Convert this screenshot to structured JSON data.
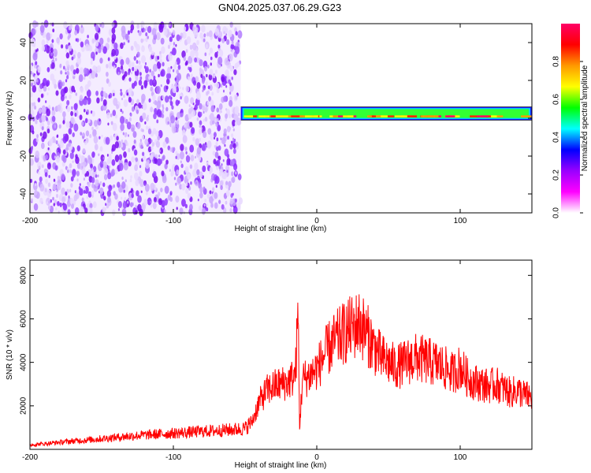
{
  "title": "GN04.2025.037.06.29.G23",
  "chart_data": [
    {
      "type": "heatmap",
      "xlabel": "Height of straight line (km)",
      "ylabel": "Frequency (Hz)",
      "xlim": [
        -200,
        150
      ],
      "ylim": [
        -50,
        50
      ],
      "x_ticks": [
        -200,
        -100,
        0,
        100
      ],
      "x_tick_labels": [
        "-200",
        "-100",
        "0",
        "100"
      ],
      "y_ticks": [
        -40,
        -20,
        0,
        20,
        40
      ],
      "y_tick_labels": [
        "-40",
        "-20",
        "0",
        "20",
        "40"
      ],
      "noise_region_x": [
        -200,
        -53
      ],
      "band_x": [
        -53,
        150
      ],
      "band_freq_range": [
        -1,
        6
      ],
      "colorbar": {
        "label": "Normalized spectral amplitude",
        "range": [
          0,
          1
        ],
        "ticks": [
          0.0,
          0.2,
          0.4,
          0.6,
          0.8
        ],
        "tick_labels": [
          "0.0",
          "0.2",
          "0.4",
          "0.6",
          "0.8"
        ],
        "colors": [
          "#ffffff",
          "#ff00ff",
          "#9900ff",
          "#0000ff",
          "#00ffff",
          "#00ff00",
          "#ffff00",
          "#ff9900",
          "#ff0000",
          "#ff0066"
        ]
      },
      "grid": false
    },
    {
      "type": "line",
      "xlabel": "Height of straight line (km)",
      "ylabel": "SNR (10 * v/v)",
      "xlim": [
        -200,
        150
      ],
      "ylim": [
        0,
        8700
      ],
      "x_ticks": [
        -200,
        -100,
        0,
        100
      ],
      "x_tick_labels": [
        "-200",
        "-100",
        "0",
        "100"
      ],
      "y_ticks": [
        2000,
        4000,
        6000,
        8000
      ],
      "y_tick_labels": [
        "2000",
        "4000",
        "6000",
        "8000"
      ],
      "line_color": "#ff0000",
      "grid": false,
      "x": [
        -200,
        -190,
        -180,
        -170,
        -160,
        -150,
        -140,
        -130,
        -120,
        -110,
        -100,
        -90,
        -80,
        -70,
        -60,
        -50,
        -45,
        -40,
        -35,
        -30,
        -25,
        -20,
        -15,
        -13,
        -12,
        -10,
        -5,
        0,
        5,
        10,
        15,
        20,
        25,
        30,
        35,
        40,
        45,
        50,
        55,
        60,
        65,
        70,
        75,
        80,
        85,
        90,
        95,
        100,
        105,
        110,
        115,
        120,
        125,
        130,
        135,
        140,
        145,
        150
      ],
      "y": [
        200,
        260,
        320,
        380,
        430,
        490,
        550,
        610,
        660,
        700,
        740,
        780,
        820,
        860,
        900,
        960,
        1300,
        2200,
        2700,
        2900,
        3000,
        3100,
        3400,
        6200,
        1000,
        3200,
        3400,
        3700,
        4300,
        4800,
        5100,
        5400,
        5600,
        5800,
        5300,
        4700,
        4200,
        4000,
        3800,
        3900,
        4100,
        4200,
        4100,
        4000,
        3900,
        3700,
        3500,
        3800,
        3300,
        3100,
        3000,
        2900,
        3000,
        2800,
        2600,
        2700,
        2500,
        2400
      ]
    }
  ]
}
